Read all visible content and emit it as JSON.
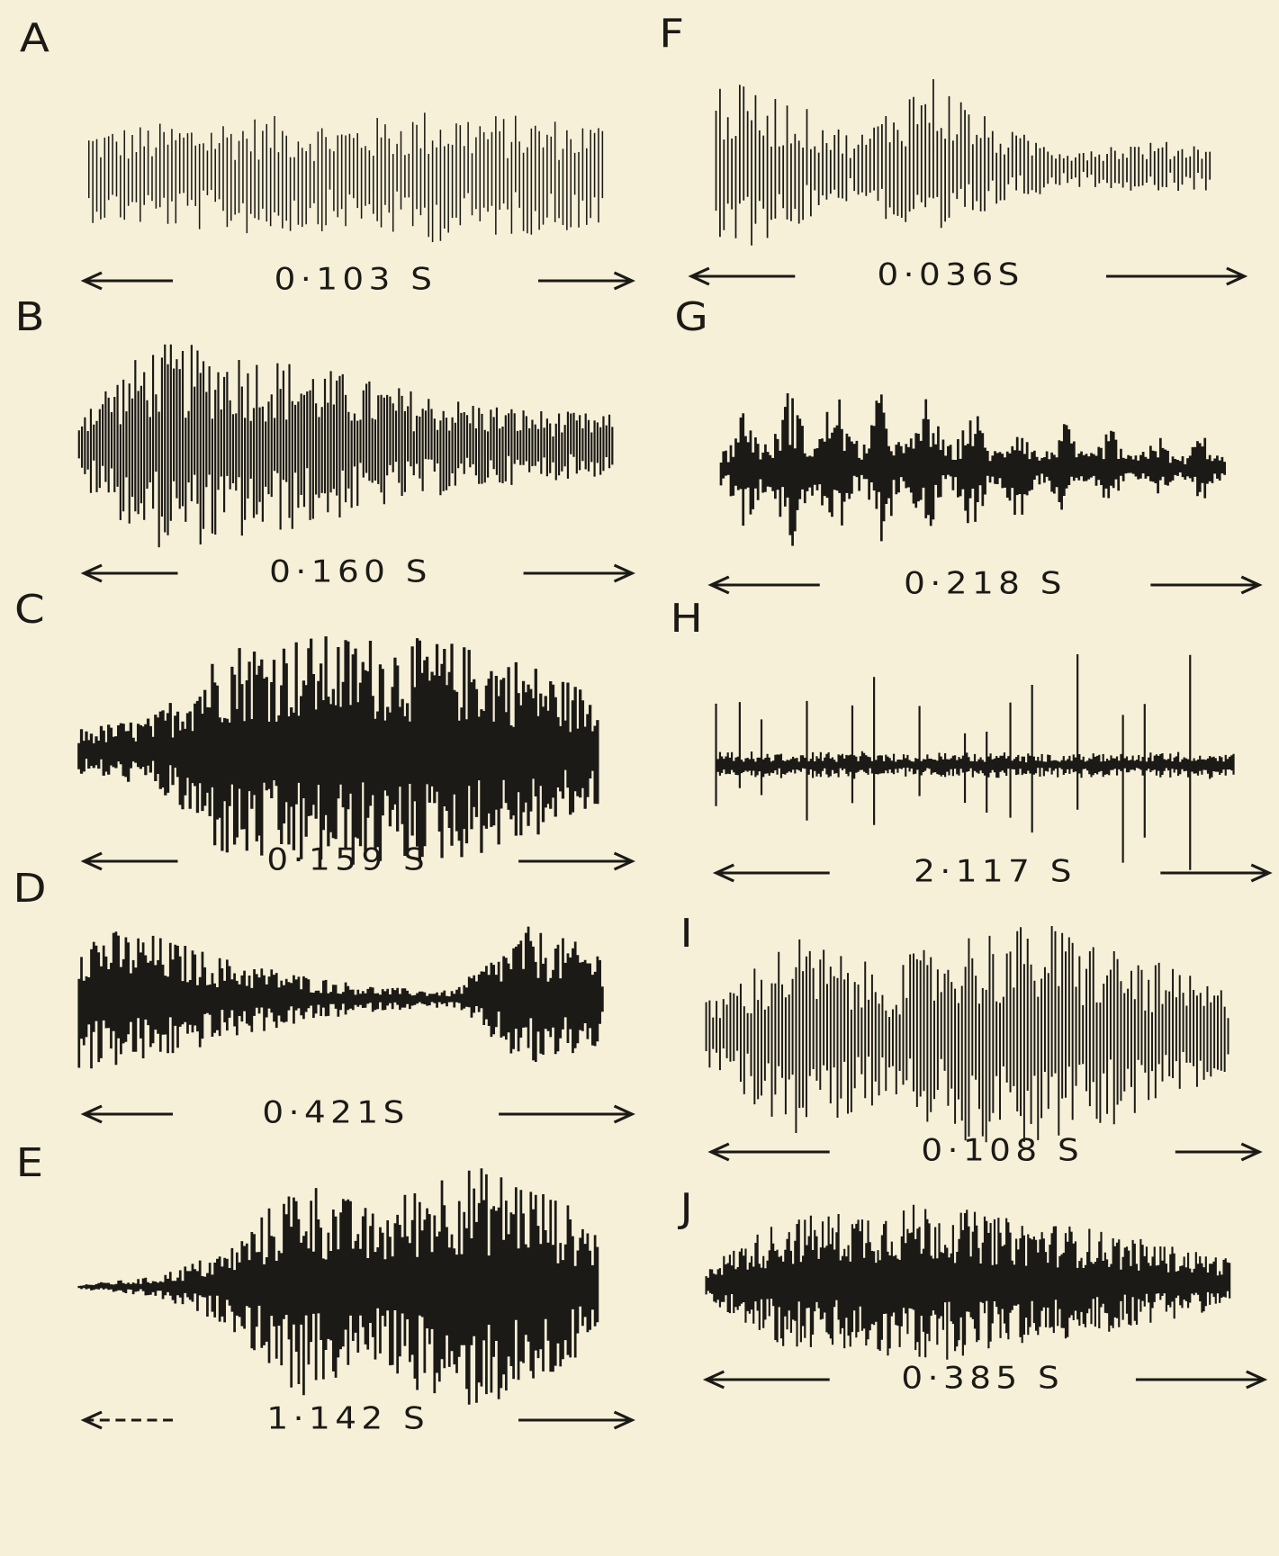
{
  "panels": [
    {
      "letter": "A",
      "duration": "0·103 S"
    },
    {
      "letter": "B",
      "duration": "0·160 S"
    },
    {
      "letter": "C",
      "duration": "0·159 S"
    },
    {
      "letter": "D",
      "duration": "0·421S"
    },
    {
      "letter": "E",
      "duration": "1·142 S"
    },
    {
      "letter": "F",
      "duration": "0·036S"
    },
    {
      "letter": "G",
      "duration": "0·218 S"
    },
    {
      "letter": "H",
      "duration": "2·117 S"
    },
    {
      "letter": "I",
      "duration": "0·108 S"
    },
    {
      "letter": "J",
      "duration": "0·385 S"
    }
  ]
}
